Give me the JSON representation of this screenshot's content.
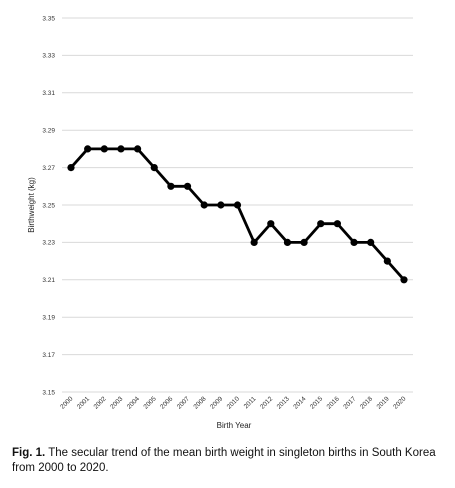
{
  "chart_data": {
    "type": "line",
    "title": "",
    "xlabel": "Birth Year",
    "ylabel": "Birthweight (kg)",
    "ylim": [
      3.15,
      3.35
    ],
    "yticks": [
      "3.15",
      "3.17",
      "3.19",
      "3.21",
      "3.23",
      "3.25",
      "3.27",
      "3.29",
      "3.31",
      "3.33",
      "3.35"
    ],
    "grid": true,
    "legend": "none",
    "categories": [
      "2000",
      "2001",
      "2002",
      "2003",
      "2004",
      "2005",
      "2006",
      "2007",
      "2008",
      "2009",
      "2010",
      "2011",
      "2012",
      "2013",
      "2014",
      "2015",
      "2016",
      "2017",
      "2018",
      "2019",
      "2020"
    ],
    "series": [
      {
        "values": [
          3.27,
          3.28,
          3.28,
          3.28,
          3.28,
          3.27,
          3.26,
          3.26,
          3.25,
          3.25,
          3.25,
          3.23,
          3.24,
          3.23,
          3.23,
          3.24,
          3.24,
          3.23,
          3.23,
          3.22,
          3.21
        ],
        "color": "#000000"
      }
    ]
  },
  "caption": {
    "label": "Fig. 1.",
    "text": "The secular trend of the mean birth weight in singleton births in South Korea from 2000 to 2020."
  }
}
